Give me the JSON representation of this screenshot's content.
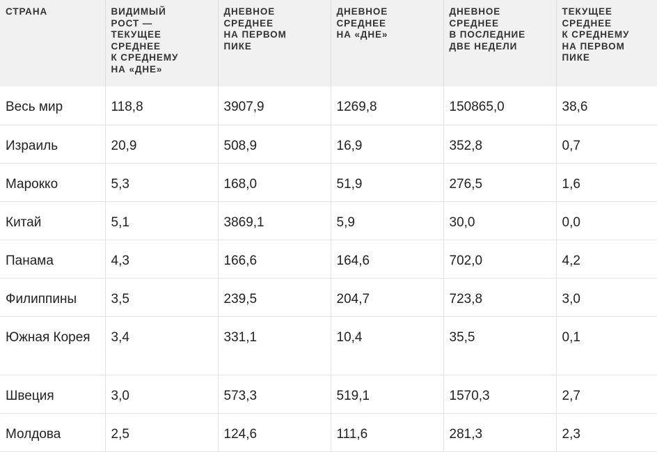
{
  "table": {
    "headers": [
      [
        "СТРАНА"
      ],
      [
        "ВИДИМЫЙ",
        "РОСТ —",
        "ТЕКУЩЕЕ",
        "СРЕДНЕЕ",
        "К СРЕДНЕМУ",
        "НА «ДНЕ»"
      ],
      [
        "ДНЕВНОЕ",
        "СРЕДНЕЕ",
        "НА ПЕРВОМ",
        "ПИКЕ"
      ],
      [
        "ДНЕВНОЕ",
        "СРЕДНЕЕ",
        "НА «ДНЕ»"
      ],
      [
        "ДНЕВНОЕ",
        "СРЕДНЕЕ",
        "В ПОСЛЕДНИЕ",
        "ДВЕ НЕДЕЛИ"
      ],
      [
        "ТЕКУЩЕЕ",
        "СРЕДНЕЕ",
        "К СРЕДНЕМУ",
        "НА ПЕРВОМ",
        "ПИКЕ"
      ]
    ],
    "rows": [
      [
        "Весь мир",
        "118,8",
        "3907,9",
        "1269,8",
        "150865,0",
        "38,6"
      ],
      [
        "Израиль",
        "20,9",
        "508,9",
        "16,9",
        "352,8",
        "0,7"
      ],
      [
        "Марокко",
        "5,3",
        "168,0",
        "51,9",
        "276,5",
        "1,6"
      ],
      [
        "Китай",
        "5,1",
        "3869,1",
        "5,9",
        "30,0",
        "0,0"
      ],
      [
        "Панама",
        "4,3",
        "166,6",
        "164,6",
        "702,0",
        "4,2"
      ],
      [
        "Филиппины",
        "3,5",
        "239,5",
        "204,7",
        "723,8",
        "3,0"
      ],
      [
        "Южная Корея",
        "3,4",
        "331,1",
        "10,4",
        "35,5",
        "0,1"
      ],
      [
        "Швеция",
        "3,0",
        "573,3",
        "519,1",
        "1570,3",
        "2,7"
      ],
      [
        "Молдова",
        "2,5",
        "124,6",
        "111,6",
        "281,3",
        "2,3"
      ]
    ]
  }
}
